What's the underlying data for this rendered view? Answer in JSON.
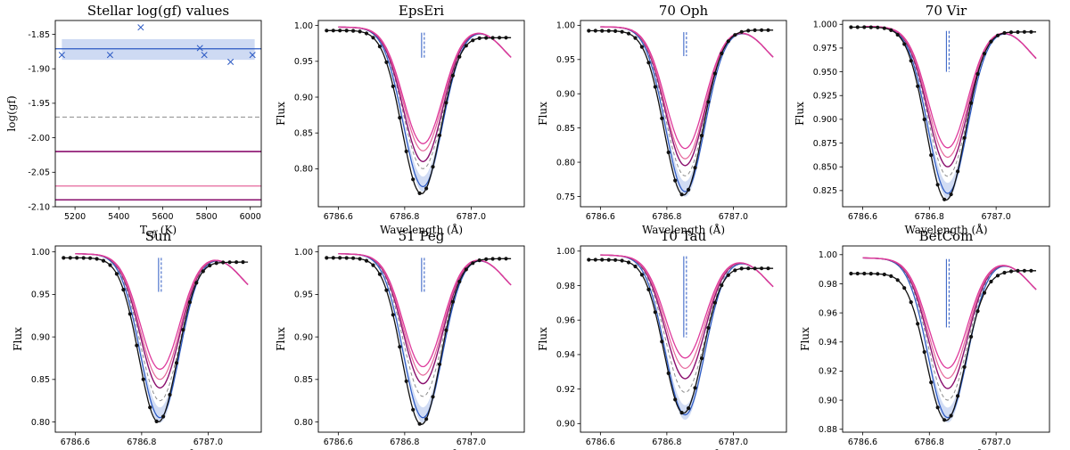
{
  "figure": {
    "colors": {
      "obs": "#111111",
      "blue": "#2b59c3",
      "blue_band": "#c9d6f2",
      "magenta": "#de3a9c",
      "pink": "#e5669b",
      "purple": "#8a0f6e",
      "gray": "#8c8c8c"
    }
  },
  "chart_data": [
    {
      "type": "scatter",
      "title": "Stellar log(gf) values",
      "xlabel": "T$_{eff}$ (K)",
      "xlabel_text": "T",
      "xlabel_sub": "eff",
      "xlabel_suffix": " (K)",
      "ylabel": "log(gf)",
      "xlim": [
        5110,
        6050
      ],
      "ylim": [
        -2.1,
        -1.83
      ],
      "xticks": [
        5200,
        5400,
        5600,
        5800,
        6000
      ],
      "yticks": [
        -2.1,
        -2.05,
        -2.0,
        -1.95,
        -1.9,
        -1.85
      ],
      "points": [
        [
          5140,
          -1.88
        ],
        [
          5360,
          -1.88
        ],
        [
          5500,
          -1.84
        ],
        [
          5770,
          -1.87
        ],
        [
          5790,
          -1.88
        ],
        [
          5910,
          -1.89
        ],
        [
          6010,
          -1.88
        ]
      ],
      "mean": -1.871,
      "band": [
        -1.887,
        -1.857
      ],
      "hlines": [
        {
          "y": -1.97,
          "style": "gray-dashed"
        },
        {
          "y": -2.02,
          "style": "purple"
        },
        {
          "y": -2.07,
          "style": "pink"
        },
        {
          "y": -2.09,
          "style": "purple"
        }
      ]
    },
    {
      "type": "line",
      "title": "EpsEri",
      "xlabel": "Wavelength (Å)",
      "ylabel": "Flux",
      "xlim": [
        6786.54,
        6787.16
      ],
      "ylim": [
        0.747,
        1.007
      ],
      "xticks": [
        6786.6,
        6786.8,
        6787.0
      ],
      "yticks": [
        0.8,
        0.85,
        0.9,
        0.95,
        1.0
      ],
      "depth_obs": 0.765,
      "cont_obs": 0.993,
      "cont_red": 0.983,
      "model_depths": [
        0.775,
        0.8,
        0.81,
        0.825,
        0.835
      ],
      "vline_top": 0.99,
      "vline_bottom": 0.955
    },
    {
      "type": "line",
      "title": "70 Oph",
      "xlabel": "Wavelength (Å)",
      "ylabel": "Flux",
      "xlim": [
        6786.54,
        6787.16
      ],
      "ylim": [
        0.735,
        1.007
      ],
      "xticks": [
        6786.6,
        6786.8,
        6787.0
      ],
      "yticks": [
        0.75,
        0.8,
        0.85,
        0.9,
        0.95,
        1.0
      ],
      "depth_obs": 0.752,
      "cont_obs": 0.992,
      "cont_red": 0.993,
      "model_depths": [
        0.757,
        0.78,
        0.795,
        0.805,
        0.82
      ],
      "vline_top": 0.99,
      "vline_bottom": 0.955
    },
    {
      "type": "line",
      "title": "70 Vir",
      "xlabel": "Wavelength (Å)",
      "ylabel": "Flux",
      "xlim": [
        6786.54,
        6787.16
      ],
      "ylim": [
        0.808,
        1.004
      ],
      "xticks": [
        6786.6,
        6786.8,
        6787.0
      ],
      "yticks": [
        0.825,
        0.85,
        0.875,
        0.9,
        0.925,
        0.95,
        0.975,
        1.0
      ],
      "depth_obs": 0.815,
      "cont_obs": 0.997,
      "cont_red": 0.992,
      "model_depths": [
        0.822,
        0.84,
        0.85,
        0.86,
        0.87
      ],
      "vline_top": 0.993,
      "vline_bottom": 0.95
    },
    {
      "type": "line",
      "title": "Sun",
      "xlabel": "Wavelength (Å)",
      "ylabel": "Flux",
      "xlim": [
        6786.54,
        6787.16
      ],
      "ylim": [
        0.788,
        1.007
      ],
      "xticks": [
        6786.6,
        6786.8,
        6787.0
      ],
      "yticks": [
        0.8,
        0.85,
        0.9,
        0.95,
        1.0
      ],
      "depth_obs": 0.8,
      "cont_obs": 0.993,
      "cont_red": 0.988,
      "model_depths": [
        0.805,
        0.825,
        0.84,
        0.85,
        0.862
      ],
      "vline_top": 0.993,
      "vline_bottom": 0.953
    },
    {
      "type": "line",
      "title": "51 Peg",
      "xlabel": "Wavelength (Å)",
      "ylabel": "Flux",
      "xlim": [
        6786.54,
        6787.16
      ],
      "ylim": [
        0.788,
        1.007
      ],
      "xticks": [
        6786.6,
        6786.8,
        6787.0
      ],
      "yticks": [
        0.8,
        0.85,
        0.9,
        0.95,
        1.0
      ],
      "depth_obs": 0.797,
      "cont_obs": 0.993,
      "cont_red": 0.992,
      "model_depths": [
        0.805,
        0.83,
        0.845,
        0.855,
        0.865
      ],
      "vline_top": 0.993,
      "vline_bottom": 0.953
    },
    {
      "type": "line",
      "title": "10 Tau",
      "xlabel": "Wavelength (Å)",
      "ylabel": "Flux",
      "xlim": [
        6786.54,
        6787.16
      ],
      "ylim": [
        0.895,
        1.003
      ],
      "xticks": [
        6786.6,
        6786.8,
        6787.0
      ],
      "yticks": [
        0.9,
        0.92,
        0.94,
        0.96,
        0.98,
        1.0
      ],
      "depth_obs": 0.906,
      "cont_obs": 0.995,
      "cont_red": 0.99,
      "model_depths": [
        0.905,
        0.918,
        0.926,
        0.932,
        0.938
      ],
      "vline_top": 0.997,
      "vline_bottom": 0.95
    },
    {
      "type": "line",
      "title": "BetCom",
      "xlabel": "Wavelength (Å)",
      "ylabel": "Flux",
      "xlim": [
        6786.54,
        6787.16
      ],
      "ylim": [
        0.878,
        1.006
      ],
      "xticks": [
        6786.6,
        6786.8,
        6787.0
      ],
      "yticks": [
        0.88,
        0.9,
        0.92,
        0.94,
        0.96,
        0.98,
        1.0
      ],
      "depth_obs": 0.886,
      "cont_obs": 0.987,
      "cont_red": 0.989,
      "model_depths": [
        0.888,
        0.9,
        0.908,
        0.915,
        0.922
      ],
      "vline_top": 0.997,
      "vline_bottom": 0.95
    }
  ]
}
